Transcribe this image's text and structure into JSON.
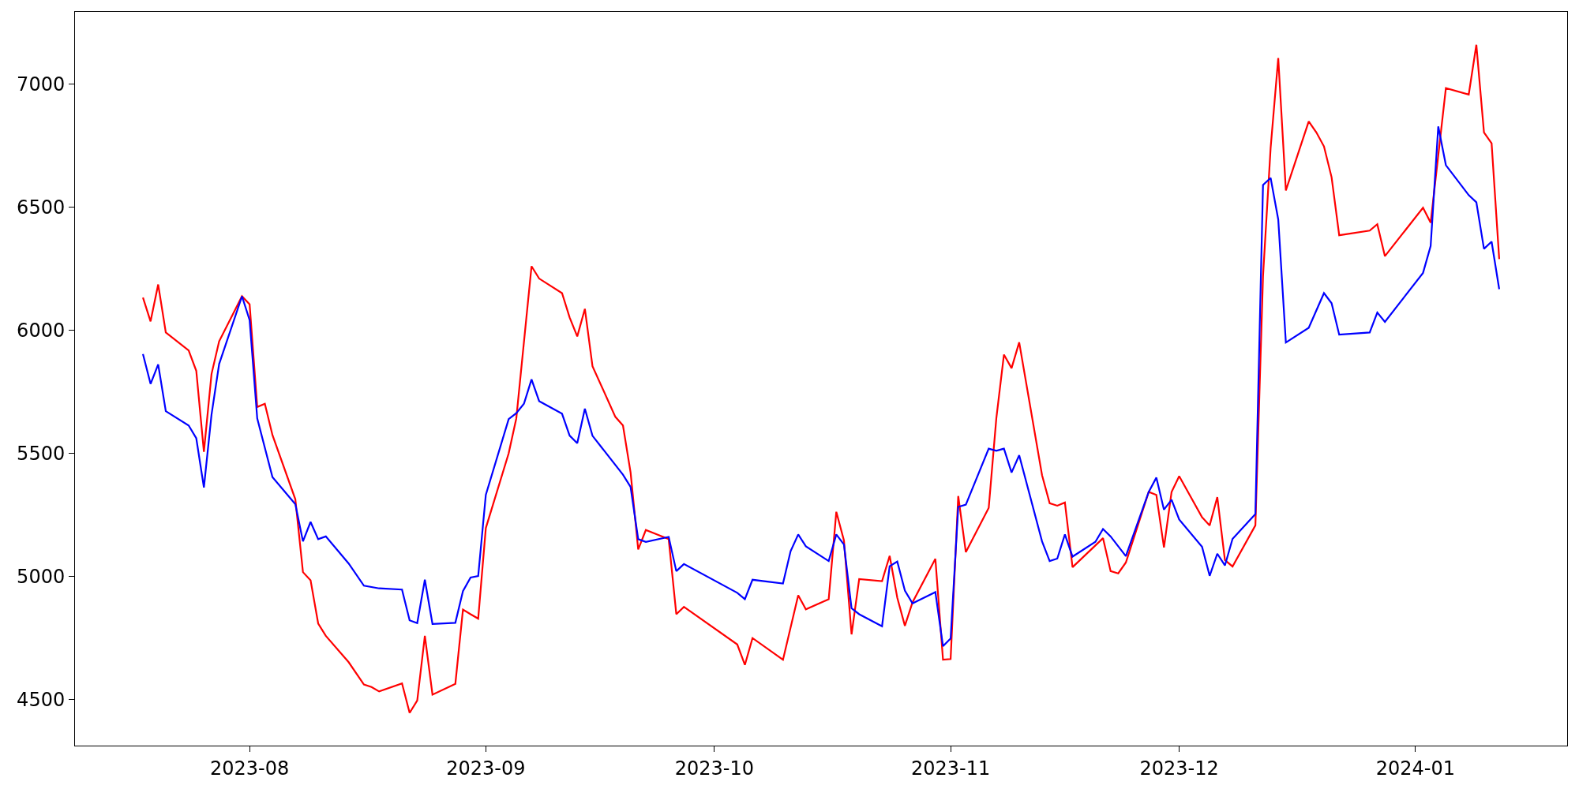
{
  "chart_data": {
    "type": "line",
    "series": [
      {
        "color": "#ff0000",
        "x": [
          "2023-07-18",
          "2023-07-19",
          "2023-07-20",
          "2023-07-21",
          "2023-07-24",
          "2023-07-25",
          "2023-07-26",
          "2023-07-27",
          "2023-07-28",
          "2023-07-31",
          "2023-08-01",
          "2023-08-02",
          "2023-08-03",
          "2023-08-04",
          "2023-08-07",
          "2023-08-08",
          "2023-08-09",
          "2023-08-10",
          "2023-08-11",
          "2023-08-14",
          "2023-08-16",
          "2023-08-17",
          "2023-08-18",
          "2023-08-21",
          "2023-08-22",
          "2023-08-23",
          "2023-08-24",
          "2023-08-25",
          "2023-08-28",
          "2023-08-29",
          "2023-08-30",
          "2023-08-31",
          "2023-09-01",
          "2023-09-04",
          "2023-09-05",
          "2023-09-07",
          "2023-09-08",
          "2023-09-11",
          "2023-09-12",
          "2023-09-13",
          "2023-09-14",
          "2023-09-15",
          "2023-09-18",
          "2023-09-19",
          "2023-09-20",
          "2023-09-21",
          "2023-09-22",
          "2023-09-25",
          "2023-09-26",
          "2023-09-27",
          "2023-10-04",
          "2023-10-05",
          "2023-10-06",
          "2023-10-10",
          "2023-10-12",
          "2023-10-13",
          "2023-10-16",
          "2023-10-17",
          "2023-10-18",
          "2023-10-19",
          "2023-10-20",
          "2023-10-23",
          "2023-10-24",
          "2023-10-25",
          "2023-10-26",
          "2023-10-27",
          "2023-10-30",
          "2023-10-31",
          "2023-11-01",
          "2023-11-02",
          "2023-11-03",
          "2023-11-06",
          "2023-11-07",
          "2023-11-08",
          "2023-11-09",
          "2023-11-10",
          "2023-11-13",
          "2023-11-14",
          "2023-11-15",
          "2023-11-16",
          "2023-11-17",
          "2023-11-21",
          "2023-11-22",
          "2023-11-23",
          "2023-11-24",
          "2023-11-27",
          "2023-11-28",
          "2023-11-29",
          "2023-11-30",
          "2023-12-01",
          "2023-12-04",
          "2023-12-05",
          "2023-12-06",
          "2023-12-07",
          "2023-12-08",
          "2023-12-11",
          "2023-12-12",
          "2023-12-13",
          "2023-12-14",
          "2023-12-15",
          "2023-12-18",
          "2023-12-19",
          "2023-12-20",
          "2023-12-21",
          "2023-12-22",
          "2023-12-26",
          "2023-12-27",
          "2023-12-28",
          "2024-01-02",
          "2024-01-03",
          "2024-01-05",
          "2024-01-08",
          "2024-01-09",
          "2024-01-10",
          "2024-01-11",
          "2024-01-12"
        ],
        "values": [
          6133,
          6036,
          6186,
          5991,
          5918,
          5835,
          5506,
          5822,
          5955,
          6138,
          6105,
          5688,
          5701,
          5574,
          5313,
          5017,
          4984,
          4808,
          4758,
          4651,
          4560,
          4550,
          4532,
          4565,
          4445,
          4495,
          4758,
          4519,
          4563,
          4865,
          4846,
          4828,
          5196,
          5500,
          5642,
          6260,
          6210,
          6151,
          6052,
          5975,
          6087,
          5854,
          5648,
          5613,
          5422,
          5109,
          5188,
          5151,
          4846,
          4876,
          4723,
          4640,
          4749,
          4661,
          4923,
          4866,
          4907,
          5262,
          5146,
          4764,
          4989,
          4980,
          5083,
          4913,
          4799,
          4894,
          5071,
          4661,
          4664,
          5326,
          5098,
          5278,
          5642,
          5901,
          5846,
          5951,
          5411,
          5297,
          5287,
          5300,
          5037,
          5155,
          5021,
          5012,
          5056,
          5343,
          5331,
          5117,
          5343,
          5407,
          5240,
          5207,
          5322,
          5066,
          5040,
          5207,
          6219,
          6741,
          7106,
          6568,
          6849,
          6804,
          6747,
          6622,
          6386,
          6405,
          6431,
          6301,
          6498,
          6437,
          6984,
          6958,
          7160,
          6804,
          6760,
          6289
        ]
      },
      {
        "color": "#0000ff",
        "x": [
          "2023-07-18",
          "2023-07-19",
          "2023-07-20",
          "2023-07-21",
          "2023-07-24",
          "2023-07-25",
          "2023-07-26",
          "2023-07-27",
          "2023-07-28",
          "2023-07-31",
          "2023-08-01",
          "2023-08-02",
          "2023-08-04",
          "2023-08-07",
          "2023-08-08",
          "2023-08-09",
          "2023-08-10",
          "2023-08-11",
          "2023-08-14",
          "2023-08-16",
          "2023-08-18",
          "2023-08-21",
          "2023-08-22",
          "2023-08-23",
          "2023-08-24",
          "2023-08-25",
          "2023-08-28",
          "2023-08-29",
          "2023-08-30",
          "2023-08-31",
          "2023-09-01",
          "2023-09-04",
          "2023-09-05",
          "2023-09-06",
          "2023-09-07",
          "2023-09-08",
          "2023-09-11",
          "2023-09-12",
          "2023-09-13",
          "2023-09-14",
          "2023-09-15",
          "2023-09-19",
          "2023-09-20",
          "2023-09-21",
          "2023-09-22",
          "2023-09-25",
          "2023-09-26",
          "2023-09-27",
          "2023-10-04",
          "2023-10-05",
          "2023-10-06",
          "2023-10-10",
          "2023-10-11",
          "2023-10-12",
          "2023-10-13",
          "2023-10-16",
          "2023-10-17",
          "2023-10-18",
          "2023-10-19",
          "2023-10-20",
          "2023-10-23",
          "2023-10-24",
          "2023-10-25",
          "2023-10-26",
          "2023-10-27",
          "2023-10-30",
          "2023-10-31",
          "2023-11-01",
          "2023-11-02",
          "2023-11-03",
          "2023-11-06",
          "2023-11-07",
          "2023-11-08",
          "2023-11-09",
          "2023-11-10",
          "2023-11-13",
          "2023-11-14",
          "2023-11-15",
          "2023-11-16",
          "2023-11-17",
          "2023-11-20",
          "2023-11-21",
          "2023-11-22",
          "2023-11-24",
          "2023-11-27",
          "2023-11-28",
          "2023-11-29",
          "2023-11-30",
          "2023-12-01",
          "2023-12-04",
          "2023-12-05",
          "2023-12-06",
          "2023-12-07",
          "2023-12-08",
          "2023-12-11",
          "2023-12-12",
          "2023-12-13",
          "2023-12-14",
          "2023-12-15",
          "2023-12-18",
          "2023-12-20",
          "2023-12-21",
          "2023-12-22",
          "2023-12-26",
          "2023-12-27",
          "2023-12-28",
          "2024-01-02",
          "2024-01-03",
          "2024-01-04",
          "2024-01-05",
          "2024-01-08",
          "2024-01-09",
          "2024-01-10",
          "2024-01-11",
          "2024-01-12"
        ],
        "values": [
          5903,
          5782,
          5861,
          5671,
          5613,
          5561,
          5361,
          5657,
          5863,
          6138,
          6041,
          5642,
          5403,
          5293,
          5142,
          5221,
          5151,
          5162,
          5052,
          4962,
          4951,
          4946,
          4821,
          4810,
          4986,
          4806,
          4811,
          4940,
          4995,
          5001,
          5331,
          5639,
          5663,
          5701,
          5800,
          5712,
          5661,
          5572,
          5541,
          5681,
          5571,
          5413,
          5363,
          5151,
          5140,
          5160,
          5021,
          5050,
          4933,
          4907,
          4986,
          4971,
          5102,
          5170,
          5122,
          5062,
          5170,
          5129,
          4870,
          4846,
          4797,
          5041,
          5060,
          4942,
          4890,
          4936,
          4716,
          4747,
          5282,
          5291,
          5519,
          5510,
          5519,
          5422,
          5492,
          5142,
          5062,
          5072,
          5170,
          5080,
          5140,
          5192,
          5162,
          5082,
          5343,
          5401,
          5271,
          5311,
          5231,
          5120,
          5002,
          5092,
          5044,
          5152,
          5253,
          6590,
          6619,
          6450,
          5950,
          6010,
          6151,
          6110,
          5982,
          5991,
          6072,
          6034,
          6233,
          6342,
          6828,
          6671,
          6549,
          6520,
          6331,
          6360,
          6167
        ]
      }
    ],
    "xlim": [
      "2023-07-09T02:00",
      "2024-01-20T22:00"
    ],
    "xticks": [
      {
        "value": "2023-08-01",
        "label": "2023-08"
      },
      {
        "value": "2023-09-01",
        "label": "2023-09"
      },
      {
        "value": "2023-10-01",
        "label": "2023-10"
      },
      {
        "value": "2023-11-01",
        "label": "2023-11"
      },
      {
        "value": "2023-12-01",
        "label": "2023-12"
      },
      {
        "value": "2024-01-01",
        "label": "2024-01"
      }
    ],
    "ylim": [
      4312,
      7294
    ],
    "yticks": [
      4500,
      5000,
      5500,
      6000,
      6500,
      7000
    ],
    "line_style": "solid"
  }
}
